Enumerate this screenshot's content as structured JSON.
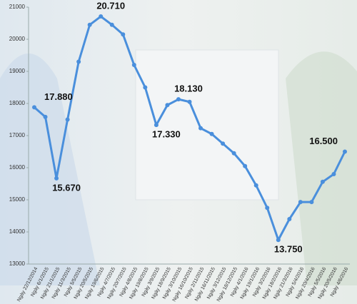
{
  "chart_data": {
    "type": "line",
    "categories": [
      "Ngày 22/12/2014",
      "Ngày 6/1/2015",
      "Ngày 21/1/2015",
      "Ngày 11/3/2015",
      "Ngày 5/5/2015",
      "Ngày 20/5/2015",
      "Ngày 19/6/2015",
      "Ngày 4/7/2015",
      "Ngày 20/7/2015",
      "Ngày 4/8/2015",
      "Ngày 19/8/2015",
      "Ngày 3/9/2015",
      "Ngày 18/9/2015",
      "Ngày 3/10/2015",
      "Ngày 16/10/2015",
      "Ngày 2/11/2015",
      "Ngày 16/11/2015",
      "Ngày 3/12/2015",
      "Ngày 18/12/2015",
      "Ngày 4/1/2016",
      "Ngày 19/1/2016",
      "Ngày 3/2/2016",
      "Ngày 18/2/2016",
      "Ngày 21/3/2016",
      "Ngày 5/4/2016",
      "Ngày 20/4/2016",
      "Ngày 5/5/2016",
      "Ngày 20/5/2016",
      "Ngày 4/6/2016"
    ],
    "values": [
      17880,
      17580,
      15670,
      17500,
      19300,
      20450,
      20710,
      20450,
      20150,
      19200,
      18500,
      17330,
      17950,
      18130,
      18050,
      17230,
      17050,
      16750,
      16450,
      16050,
      15450,
      14750,
      13750,
      14400,
      14930,
      14930,
      15560,
      15800,
      16500
    ],
    "value_labels": [
      "17.880",
      null,
      "15.670",
      null,
      null,
      null,
      "20.710",
      null,
      null,
      null,
      null,
      "17.330",
      null,
      "18.130",
      null,
      null,
      null,
      null,
      null,
      null,
      null,
      null,
      "13.750",
      null,
      null,
      null,
      null,
      null,
      "16.500"
    ],
    "color": "#4a8fdc",
    "ylim": [
      13000,
      21000
    ],
    "yticks": [
      13000,
      14000,
      15000,
      16000,
      17000,
      18000,
      19000,
      20000,
      21000
    ]
  }
}
